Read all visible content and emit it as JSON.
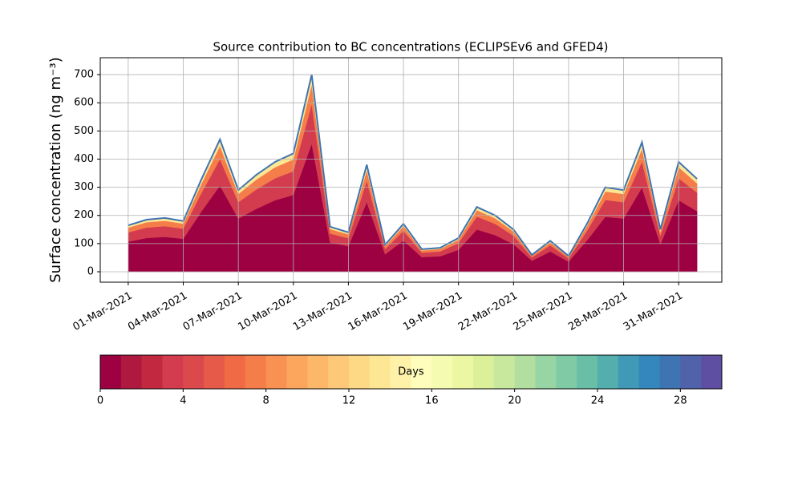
{
  "chart_data": [
    {
      "type": "stacked_area",
      "title": "Source contribution to BC concentrations (ECLIPSEv6 and GFED4)",
      "y_label": "Surface concentration (ng m⁻³)",
      "x": [
        "2021-03-01",
        "2021-03-02",
        "2021-03-03",
        "2021-03-04",
        "2021-03-05",
        "2021-03-06",
        "2021-03-07",
        "2021-03-08",
        "2021-03-09",
        "2021-03-10",
        "2021-03-11",
        "2021-03-12",
        "2021-03-13",
        "2021-03-14",
        "2021-03-15",
        "2021-03-16",
        "2021-03-17",
        "2021-03-18",
        "2021-03-19",
        "2021-03-20",
        "2021-03-21",
        "2021-03-22",
        "2021-03-23",
        "2021-03-24",
        "2021-03-25",
        "2021-03-26",
        "2021-03-27",
        "2021-03-28",
        "2021-03-29",
        "2021-03-30",
        "2021-03-31",
        "2021-04-01"
      ],
      "series": [
        {
          "color": "#9e0142",
          "values": [
            107,
            120,
            124,
            117,
            215,
            306,
            189,
            224,
            254,
            273,
            455,
            104,
            91,
            247,
            62,
            111,
            52,
            55,
            78,
            150,
            130,
            98,
            39,
            72,
            36,
            111,
            195,
            189,
            299,
            98,
            254,
            215
          ]
        },
        {
          "color": "#d23c4e",
          "values": [
            33,
            37,
            38,
            36,
            66,
            94,
            58,
            69,
            78,
            84,
            140,
            32,
            28,
            76,
            19,
            34,
            16,
            17,
            24,
            46,
            40,
            30,
            12,
            22,
            11,
            34,
            60,
            58,
            92,
            30,
            78,
            66
          ]
        },
        {
          "color": "#f57d4a",
          "values": [
            17,
            19,
            19,
            18,
            33,
            47,
            29,
            35,
            39,
            42,
            70,
            16,
            14,
            38,
            10,
            17,
            8,
            9,
            12,
            23,
            20,
            15,
            6,
            11,
            6,
            17,
            30,
            29,
            46,
            15,
            39,
            33
          ]
        },
        {
          "color": "#fee794",
          "values": [
            8,
            9,
            10,
            9,
            16,
            23,
            14,
            17,
            19,
            21,
            35,
            8,
            7,
            19,
            5,
            8,
            4,
            4,
            6,
            11,
            10,
            7,
            3,
            5,
            3,
            8,
            15,
            14,
            23,
            7,
            19,
            16
          ]
        }
      ],
      "edge_color": "#3f74b2",
      "xlim": [
        "2021-02-28",
        "2021-04-02"
      ],
      "xticks": [
        {
          "value": "2021-03-01",
          "label": "01-Mar-2021"
        },
        {
          "value": "2021-03-04",
          "label": "04-Mar-2021"
        },
        {
          "value": "2021-03-07",
          "label": "07-Mar-2021"
        },
        {
          "value": "2021-03-10",
          "label": "10-Mar-2021"
        },
        {
          "value": "2021-03-13",
          "label": "13-Mar-2021"
        },
        {
          "value": "2021-03-16",
          "label": "16-Mar-2021"
        },
        {
          "value": "2021-03-19",
          "label": "19-Mar-2021"
        },
        {
          "value": "2021-03-22",
          "label": "22-Mar-2021"
        },
        {
          "value": "2021-03-25",
          "label": "25-Mar-2021"
        },
        {
          "value": "2021-03-28",
          "label": "28-Mar-2021"
        },
        {
          "value": "2021-03-31",
          "label": "31-Mar-2021"
        }
      ],
      "ylim": [
        -37,
        760
      ],
      "yticks": [
        0,
        100,
        200,
        300,
        400,
        500,
        600,
        700
      ],
      "grid": true
    },
    {
      "type": "colorbar",
      "label": "Days",
      "xlim": [
        0,
        30
      ],
      "xticks": [
        0,
        4,
        8,
        12,
        16,
        20,
        24,
        28
      ],
      "colors": [
        "#9e0142",
        "#b0193f",
        "#c2283f",
        "#d23c4e",
        "#dc494c",
        "#e65a4a",
        "#f06b45",
        "#f57d4a",
        "#f99153",
        "#fca55d",
        "#fdb768",
        "#fdc877",
        "#fed985",
        "#fee794",
        "#fff1a8",
        "#fffdbc",
        "#f6fbb2",
        "#ebf7a2",
        "#dcf09a",
        "#c8e89e",
        "#b2df9f",
        "#98d5a4",
        "#80cba5",
        "#69bea6",
        "#54aead",
        "#4099b7",
        "#3487bc",
        "#3f74b2",
        "#4f62aa",
        "#5e4fa2"
      ]
    }
  ]
}
